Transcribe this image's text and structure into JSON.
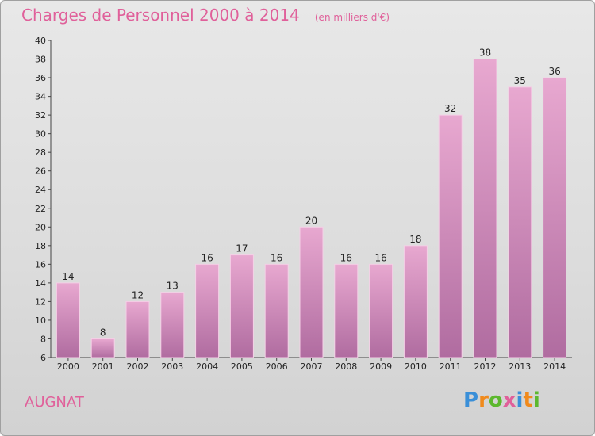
{
  "header": {
    "title": "Charges de Personnel 2000 à 2014",
    "subtitle": "(en milliers d'€)"
  },
  "commune": "AUGNAT",
  "logo": {
    "letters": [
      "P",
      "r",
      "o",
      "x",
      "i",
      "t",
      "i"
    ],
    "colors": [
      "#3a8fd8",
      "#f08a1c",
      "#5cb82e",
      "#e0609a",
      "#3a8fd8",
      "#f08a1c",
      "#5cb82e"
    ]
  },
  "colors": {
    "bar_top": "#e8a8d0",
    "bar_bottom": "#b06ca0",
    "title": "#e0609a"
  },
  "chart_data": {
    "type": "bar",
    "title": "Charges de Personnel 2000 à 2014",
    "subtitle": "(en milliers d'€)",
    "categories": [
      "2000",
      "2001",
      "2002",
      "2003",
      "2004",
      "2005",
      "2006",
      "2007",
      "2008",
      "2009",
      "2010",
      "2011",
      "2012",
      "2013",
      "2014"
    ],
    "values": [
      14,
      8,
      12,
      13,
      16,
      17,
      16,
      20,
      16,
      16,
      18,
      32,
      38,
      35,
      36
    ],
    "value_labels": [
      "14",
      "8",
      "12",
      "13",
      "16",
      "17",
      "16",
      "20",
      "16",
      "16",
      "18",
      "32",
      "38",
      "35",
      "36"
    ],
    "yticks": [
      "6",
      "8",
      "10",
      "12",
      "14",
      "16",
      "18",
      "20",
      "22",
      "24",
      "26",
      "28",
      "30",
      "32",
      "34",
      "36",
      "38",
      "40"
    ],
    "ylim": [
      6,
      40
    ],
    "grid": false,
    "legend": "none"
  }
}
